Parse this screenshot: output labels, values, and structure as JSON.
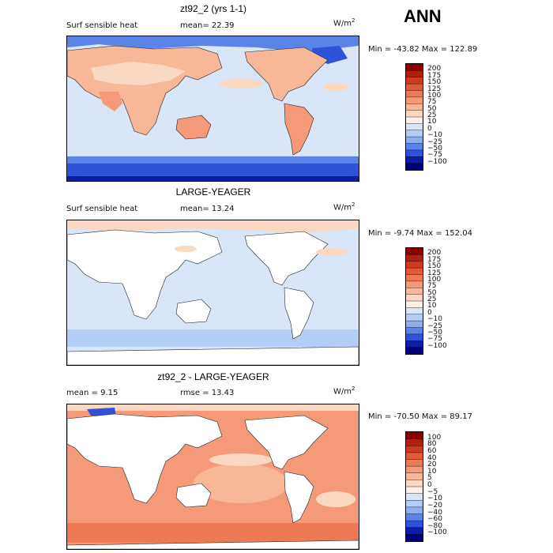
{
  "season": "ANN",
  "panels": [
    {
      "title": "zt92_2 (yrs 1-1)",
      "variable": "Surf sensible heat",
      "stat1": "mean=  22.39",
      "stat2": "",
      "units_base": "W/m",
      "units_sup": "2",
      "minmax": "Min = -43.82 Max = 122.89",
      "levels": [
        "200",
        "175",
        "150",
        "125",
        "100",
        "75",
        "50",
        "25",
        "10",
        "0",
        "−10",
        "−25",
        "−50",
        "−75",
        "−100"
      ],
      "colors": [
        "#8b0000",
        "#b02010",
        "#cf3a20",
        "#e25a3a",
        "#ee7a55",
        "#f49a78",
        "#f8b898",
        "#fbd8c2",
        "#fdeee6",
        "#d8e6f8",
        "#b4cdf4",
        "#8eaeee",
        "#5a84e8",
        "#2e52d8",
        "#0c1ea8",
        "#000078"
      ]
    },
    {
      "title": "LARGE-YEAGER",
      "variable": "Surf sensible heat",
      "stat1": "mean=  13.24",
      "stat2": "",
      "units_base": "W/m",
      "units_sup": "2",
      "minmax": "Min =  -9.74 Max = 152.04",
      "levels": [
        "200",
        "175",
        "150",
        "125",
        "100",
        "75",
        "50",
        "25",
        "10",
        "0",
        "−10",
        "−25",
        "−50",
        "−75",
        "−100"
      ],
      "colors": [
        "#8b0000",
        "#b02010",
        "#cf3a20",
        "#e25a3a",
        "#ee7a55",
        "#f49a78",
        "#f8b898",
        "#fbd8c2",
        "#fdeee6",
        "#d8e6f8",
        "#b4cdf4",
        "#8eaeee",
        "#5a84e8",
        "#2e52d8",
        "#0c1ea8",
        "#000078"
      ]
    },
    {
      "title": "zt92_2 - LARGE-YEAGER",
      "variable": "",
      "stat1": "mean =    9.15",
      "stat2": "rmse =   13.43",
      "units_base": "W/m",
      "units_sup": "2",
      "minmax": "Min = -70.50 Max =  89.17",
      "levels": [
        "100",
        "80",
        "60",
        "40",
        "20",
        "10",
        "5",
        "0",
        "−5",
        "−10",
        "−20",
        "−40",
        "−60",
        "−80",
        "−100"
      ],
      "colors": [
        "#8b0000",
        "#b02010",
        "#cf3a20",
        "#e25a3a",
        "#ee7a55",
        "#f49a78",
        "#f8b898",
        "#fbd8c2",
        "#fdeee6",
        "#d8e6f8",
        "#b4cdf4",
        "#8eaeee",
        "#5a84e8",
        "#2e52d8",
        "#0c1ea8",
        "#000078"
      ]
    }
  ],
  "chart_data": [
    {
      "type": "heatmap",
      "title": "zt92_2 (yrs 1-1)",
      "variable": "Surf sensible heat",
      "units": "W/m2",
      "mean": 22.39,
      "min": -43.82,
      "max": 122.89,
      "contour_levels": [
        200,
        175,
        150,
        125,
        100,
        75,
        50,
        25,
        10,
        0,
        -10,
        -25,
        -50,
        -75,
        -100
      ]
    },
    {
      "type": "heatmap",
      "title": "LARGE-YEAGER",
      "variable": "Surf sensible heat",
      "units": "W/m2",
      "mean": 13.24,
      "min": -9.74,
      "max": 152.04,
      "contour_levels": [
        200,
        175,
        150,
        125,
        100,
        75,
        50,
        25,
        10,
        0,
        -10,
        -25,
        -50,
        -75,
        -100
      ]
    },
    {
      "type": "heatmap",
      "title": "zt92_2 - LARGE-YEAGER",
      "units": "W/m2",
      "mean": 9.15,
      "rmse": 13.43,
      "min": -70.5,
      "max": 89.17,
      "contour_levels": [
        100,
        80,
        60,
        40,
        20,
        10,
        5,
        0,
        -5,
        -10,
        -20,
        -40,
        -60,
        -80,
        -100
      ]
    }
  ]
}
